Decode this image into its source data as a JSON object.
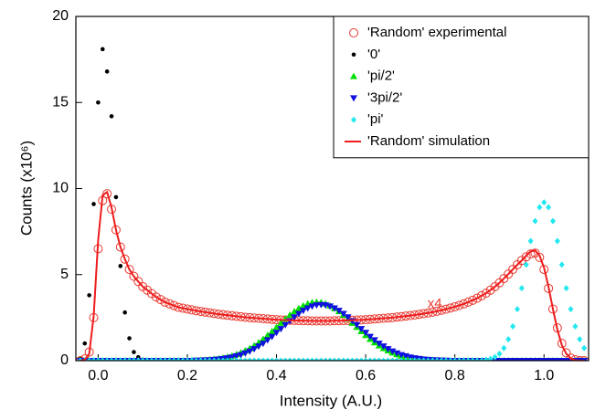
{
  "chart_data": {
    "type": "scatter",
    "x_label": "Intensity (A.U.)",
    "y_label": "Counts (x10⁶)",
    "annotation": "x4",
    "xlim": [
      -0.05,
      1.1
    ],
    "ylim": [
      0,
      20
    ],
    "xticks": [
      {
        "value": 0,
        "label": "0.0"
      },
      0.2,
      0.4,
      0.6,
      0.8,
      {
        "value": 1,
        "label": "1.0"
      }
    ],
    "yticks": [
      0,
      5,
      10,
      15,
      20
    ],
    "legend": "upper right",
    "x": [
      -0.04,
      -0.03,
      -0.02,
      -0.01,
      0,
      0.01,
      0.02,
      0.03,
      0.04,
      0.05,
      0.06,
      0.07,
      0.08,
      0.09,
      0.1,
      0.11,
      0.12,
      0.13,
      0.14,
      0.15,
      0.16,
      0.17,
      0.18,
      0.19,
      0.2,
      0.21,
      0.22,
      0.23,
      0.24,
      0.25,
      0.26,
      0.27,
      0.28,
      0.29,
      0.3,
      0.31,
      0.32,
      0.33,
      0.34,
      0.35,
      0.36,
      0.37,
      0.38,
      0.39,
      0.4,
      0.41,
      0.42,
      0.43,
      0.44,
      0.45,
      0.46,
      0.47,
      0.48,
      0.49,
      0.5,
      0.51,
      0.52,
      0.53,
      0.54,
      0.55,
      0.56,
      0.57,
      0.58,
      0.59,
      0.6,
      0.61,
      0.62,
      0.63,
      0.64,
      0.65,
      0.66,
      0.67,
      0.68,
      0.69,
      0.7,
      0.71,
      0.72,
      0.73,
      0.74,
      0.75,
      0.76,
      0.77,
      0.78,
      0.79,
      0.8,
      0.81,
      0.82,
      0.83,
      0.84,
      0.85,
      0.86,
      0.87,
      0.88,
      0.89,
      0.9,
      0.91,
      0.92,
      0.93,
      0.94,
      0.95,
      0.96,
      0.97,
      0.98,
      0.99,
      1,
      1.01,
      1.02,
      1.03,
      1.04,
      1.05,
      1.06,
      1.07,
      1.08,
      1.09
    ],
    "series": [
      {
        "name": "'Random' experimental",
        "color": "#e8382f",
        "marker": "circle-open",
        "values": [
          0,
          0.1,
          0.5,
          2.5,
          6.5,
          9.3,
          9.7,
          8.8,
          7.6,
          6.6,
          5.9,
          5.3,
          4.9,
          4.6,
          4.3,
          4.1,
          3.9,
          3.7,
          3.55,
          3.4,
          3.3,
          3.2,
          3.1,
          3.05,
          3.0,
          2.95,
          2.9,
          2.86,
          2.82,
          2.78,
          2.74,
          2.7,
          2.67,
          2.64,
          2.61,
          2.58,
          2.55,
          2.52,
          2.5,
          2.48,
          2.46,
          2.44,
          2.42,
          2.4,
          2.38,
          2.37,
          2.36,
          2.35,
          2.34,
          2.33,
          2.32,
          2.32,
          2.31,
          2.31,
          2.31,
          2.31,
          2.31,
          2.32,
          2.32,
          2.33,
          2.34,
          2.35,
          2.36,
          2.37,
          2.38,
          2.4,
          2.42,
          2.44,
          2.46,
          2.48,
          2.5,
          2.53,
          2.56,
          2.59,
          2.62,
          2.65,
          2.69,
          2.73,
          2.77,
          2.82,
          2.87,
          2.93,
          2.99,
          3.06,
          3.13,
          3.21,
          3.3,
          3.4,
          3.51,
          3.63,
          3.77,
          3.92,
          4.1,
          4.3,
          4.52,
          4.77,
          5.03,
          5.3,
          5.57,
          5.82,
          6.03,
          6.2,
          6.25,
          6.0,
          5.3,
          4.2,
          3.0,
          1.9,
          1.0,
          0.45,
          0.15,
          0.05,
          0,
          0
        ]
      },
      {
        "name": "'0'",
        "color": "#000000",
        "marker": "dot",
        "values": [
          0.1,
          1.0,
          3.8,
          9.1,
          15.0,
          18.1,
          16.8,
          14.2,
          9.5,
          5.5,
          2.8,
          1.3,
          0.5,
          0.2,
          0.06,
          0.02,
          0,
          0,
          0,
          0,
          0,
          0,
          0,
          0,
          0,
          0,
          0,
          0,
          0,
          0,
          0,
          0,
          0,
          0,
          0,
          0,
          0,
          0,
          0,
          0,
          0,
          0,
          0,
          0,
          0,
          0,
          0,
          0,
          0,
          0,
          0,
          0,
          0,
          0,
          0,
          0,
          0,
          0,
          0,
          0,
          0,
          0,
          0,
          0,
          0,
          0,
          0,
          0,
          0,
          0,
          0,
          0,
          0,
          0,
          0,
          0,
          0,
          0,
          0,
          0,
          0,
          0,
          0,
          0,
          0,
          0,
          0,
          0,
          0,
          0,
          0,
          0,
          0,
          0,
          0,
          0,
          0,
          0,
          0,
          0,
          0,
          0,
          0,
          0,
          0,
          0,
          0,
          0,
          0,
          0,
          0,
          0,
          0,
          0
        ]
      },
      {
        "name": "'pi/2'",
        "color": "#00e000",
        "marker": "triangle-up",
        "values": [
          0,
          0,
          0,
          0,
          0,
          0,
          0,
          0,
          0,
          0,
          0,
          0,
          0,
          0,
          0,
          0,
          0,
          0,
          0,
          0,
          0,
          0,
          0,
          0,
          0,
          0.01,
          0.02,
          0.03,
          0.04,
          0.06,
          0.09,
          0.12,
          0.16,
          0.21,
          0.28,
          0.36,
          0.46,
          0.58,
          0.71,
          0.87,
          1.05,
          1.25,
          1.47,
          1.7,
          1.94,
          2.18,
          2.42,
          2.65,
          2.86,
          3.04,
          3.19,
          3.31,
          3.38,
          3.4,
          3.38,
          3.31,
          3.19,
          3.04,
          2.86,
          2.65,
          2.42,
          2.18,
          1.94,
          1.7,
          1.47,
          1.25,
          1.05,
          0.87,
          0.71,
          0.58,
          0.46,
          0.36,
          0.28,
          0.21,
          0.16,
          0.12,
          0.09,
          0.06,
          0.04,
          0.03,
          0.02,
          0.01,
          0,
          0,
          0,
          0,
          0,
          0,
          0,
          0,
          0,
          0,
          0,
          0,
          0,
          0,
          0,
          0,
          0,
          0,
          0,
          0,
          0,
          0,
          0,
          0,
          0,
          0,
          0,
          0,
          0,
          0,
          0,
          0
        ]
      },
      {
        "name": "'3pi/2'",
        "color": "#1010e0",
        "marker": "triangle-down",
        "values": [
          0,
          0,
          0,
          0,
          0,
          0,
          0,
          0,
          0,
          0,
          0,
          0,
          0,
          0,
          0,
          0,
          0,
          0,
          0,
          0,
          0,
          0,
          0,
          0,
          0,
          0,
          0.01,
          0.02,
          0.03,
          0.04,
          0.06,
          0.08,
          0.11,
          0.15,
          0.2,
          0.27,
          0.34,
          0.44,
          0.55,
          0.68,
          0.84,
          1.0,
          1.2,
          1.4,
          1.63,
          1.85,
          2.08,
          2.31,
          2.53,
          2.73,
          2.91,
          3.05,
          3.16,
          3.23,
          3.25,
          3.23,
          3.16,
          3.05,
          2.91,
          2.73,
          2.53,
          2.31,
          2.08,
          1.85,
          1.63,
          1.4,
          1.2,
          1.0,
          0.84,
          0.68,
          0.55,
          0.44,
          0.34,
          0.27,
          0.2,
          0.15,
          0.11,
          0.08,
          0.06,
          0.04,
          0.03,
          0.02,
          0.01,
          0,
          0,
          0,
          0,
          0,
          0,
          0,
          0,
          0,
          0,
          0,
          0,
          0,
          0,
          0,
          0,
          0,
          0,
          0,
          0,
          0,
          0,
          0,
          0,
          0,
          0,
          0,
          0,
          0,
          0,
          0
        ]
      },
      {
        "name": "'pi'",
        "color": "#22e8f0",
        "marker": "diamond",
        "values": [
          0,
          0,
          0,
          0,
          0,
          0,
          0,
          0,
          0,
          0,
          0,
          0,
          0,
          0,
          0,
          0,
          0,
          0,
          0,
          0,
          0,
          0,
          0,
          0,
          0,
          0,
          0,
          0,
          0,
          0,
          0,
          0,
          0,
          0,
          0,
          0,
          0,
          0,
          0,
          0,
          0,
          0,
          0,
          0,
          0,
          0,
          0,
          0,
          0,
          0,
          0,
          0,
          0,
          0,
          0,
          0,
          0,
          0,
          0,
          0,
          0,
          0,
          0,
          0,
          0,
          0,
          0,
          0,
          0,
          0,
          0,
          0,
          0,
          0,
          0,
          0,
          0,
          0,
          0,
          0,
          0,
          0,
          0,
          0,
          0,
          0,
          0,
          0,
          0,
          0,
          0,
          0.05,
          0.1,
          0.21,
          0.4,
          0.73,
          1.24,
          1.99,
          2.99,
          4.21,
          5.58,
          6.95,
          8.11,
          8.91,
          9.2,
          8.91,
          8.11,
          6.95,
          5.58,
          4.21,
          2.99,
          1.99,
          1.24,
          0.73
        ]
      },
      {
        "name": "'Random' simulation",
        "color": "#ee1c1c",
        "marker": "line",
        "values": [
          0,
          0.05,
          0.4,
          2.6,
          7.0,
          9.6,
          9.8,
          8.9,
          7.6,
          6.6,
          5.9,
          5.3,
          4.9,
          4.6,
          4.3,
          4.1,
          3.9,
          3.7,
          3.55,
          3.4,
          3.3,
          3.2,
          3.1,
          3.05,
          3.0,
          2.95,
          2.9,
          2.86,
          2.82,
          2.78,
          2.74,
          2.7,
          2.67,
          2.64,
          2.61,
          2.58,
          2.55,
          2.52,
          2.5,
          2.48,
          2.46,
          2.44,
          2.42,
          2.4,
          2.38,
          2.37,
          2.36,
          2.35,
          2.34,
          2.33,
          2.32,
          2.32,
          2.31,
          2.31,
          2.31,
          2.31,
          2.31,
          2.32,
          2.32,
          2.33,
          2.34,
          2.35,
          2.36,
          2.37,
          2.38,
          2.4,
          2.42,
          2.44,
          2.46,
          2.48,
          2.5,
          2.53,
          2.56,
          2.59,
          2.62,
          2.65,
          2.69,
          2.73,
          2.77,
          2.82,
          2.87,
          2.93,
          2.99,
          3.06,
          3.13,
          3.21,
          3.3,
          3.4,
          3.51,
          3.63,
          3.77,
          3.92,
          4.1,
          4.3,
          4.52,
          4.77,
          5.03,
          5.3,
          5.57,
          5.82,
          6.1,
          6.35,
          6.4,
          6.1,
          5.4,
          4.3,
          3.0,
          1.8,
          0.9,
          0.4,
          0.12,
          0.03,
          0,
          0
        ]
      }
    ]
  }
}
